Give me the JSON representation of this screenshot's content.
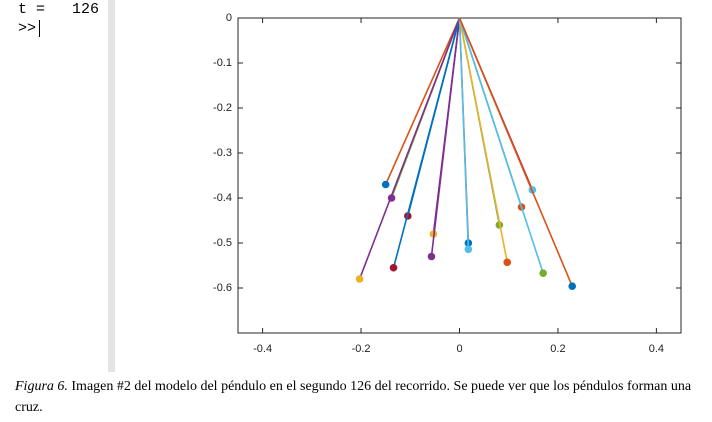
{
  "terminal": {
    "lines": [
      "t =   126",
      ">> "
    ]
  },
  "chart_data": {
    "type": "pendulum",
    "xlim": [
      -0.45,
      0.45
    ],
    "ylim": [
      -0.7,
      0
    ],
    "xticks": [
      -0.4,
      -0.2,
      0,
      0.2,
      0.4
    ],
    "yticks": [
      0,
      -0.1,
      -0.2,
      -0.3,
      -0.4,
      -0.5,
      -0.6
    ],
    "series": [
      {
        "color": "#d95319",
        "marker_color": "#0072bd",
        "x": [
          0,
          -0.15
        ],
        "values": [
          0,
          -0.37
        ]
      },
      {
        "color": "#77ac30",
        "marker_color": "#7e2f8e",
        "x": [
          0,
          -0.138
        ],
        "values": [
          0,
          -0.4
        ]
      },
      {
        "color": "#0072bd",
        "marker_color": "#a2142f",
        "x": [
          0,
          -0.105
        ],
        "values": [
          0,
          -0.44
        ]
      },
      {
        "color": "#7e2f8e",
        "marker_color": "#edb120",
        "x": [
          0,
          -0.203
        ],
        "values": [
          0,
          -0.58
        ]
      },
      {
        "color": "#0072bd",
        "marker_color": "#a2142f",
        "x": [
          0,
          -0.134
        ],
        "values": [
          0,
          -0.555
        ]
      },
      {
        "color": "#7e2f8e",
        "marker_color": "#edb120",
        "x": [
          0,
          -0.053
        ],
        "values": [
          0,
          -0.48
        ]
      },
      {
        "color": "#7e2f8e",
        "marker_color": "#7e2f8e",
        "x": [
          0,
          -0.057
        ],
        "values": [
          0,
          -0.53
        ]
      },
      {
        "color": "#d95319",
        "marker_color": "#0072bd",
        "x": [
          0,
          0.018
        ],
        "values": [
          0,
          -0.5
        ]
      },
      {
        "color": "#4dbeee",
        "marker_color": "#4dbeee",
        "x": [
          0,
          0.018
        ],
        "values": [
          0,
          -0.514
        ]
      },
      {
        "color": "#4db0a0",
        "marker_color": "#77ac30",
        "x": [
          0,
          0.081
        ],
        "values": [
          0,
          -0.46
        ]
      },
      {
        "color": "#edb120",
        "marker_color": "#d95319",
        "x": [
          0,
          0.097
        ],
        "values": [
          0,
          -0.543
        ]
      },
      {
        "color": "#9a9a30",
        "marker_color": "#d95319",
        "x": [
          0,
          0.126
        ],
        "values": [
          0,
          -0.42
        ]
      },
      {
        "color": "#a2142f",
        "marker_color": "#4dbeee",
        "x": [
          0,
          0.148
        ],
        "values": [
          0,
          -0.382
        ]
      },
      {
        "color": "#4dbeee",
        "marker_color": "#77ac30",
        "x": [
          0,
          0.17
        ],
        "values": [
          0,
          -0.567
        ]
      },
      {
        "color": "#d95319",
        "marker_color": "#0072bd",
        "x": [
          0,
          0.229
        ],
        "values": [
          0,
          -0.596
        ]
      }
    ]
  },
  "caption": {
    "label": "Figura 6.",
    "text": " Imagen #2 del modelo del péndulo en el segundo 126 del recorrido. Se puede ver que los péndulos forman una cruz."
  }
}
